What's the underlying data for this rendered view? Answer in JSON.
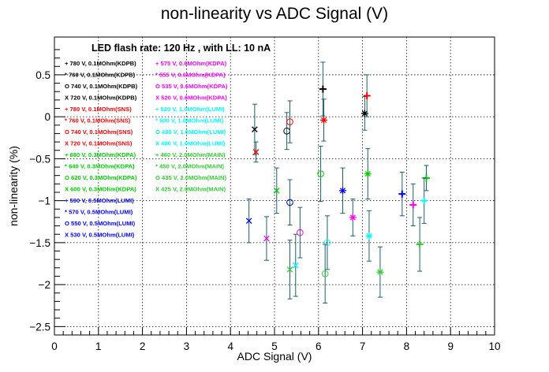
{
  "chart_data": {
    "type": "scatter",
    "title": "non-linearity vs ADC Signal (V)",
    "annotation": "LED flash rate: 120 Hz , with LL: 10 nA",
    "xlabel": "ADC Signal (V)",
    "ylabel": "non-linearity (%)",
    "xlim": [
      0,
      10
    ],
    "ylim": [
      -2.6,
      0.95
    ],
    "x_ticks": [
      0,
      1,
      2,
      3,
      4,
      5,
      6,
      7,
      8,
      9,
      10
    ],
    "x_tick_labels": [
      "0",
      "1",
      "2",
      "3",
      "4",
      "5",
      "6",
      "7",
      "8",
      "9",
      "10"
    ],
    "y_ticks": [
      -2.5,
      -2,
      -1.5,
      -1,
      -0.5,
      0,
      0.5
    ],
    "y_tick_labels": [
      "−2.5",
      "−2",
      "−1.5",
      "−1",
      "−0.5",
      "0",
      "0.5"
    ],
    "grid": true,
    "legend_position": "top-left",
    "series": [
      {
        "name": "780 V, 0.1MOhm(KDPB)",
        "color": "#000000",
        "marker": "plus",
        "x": 6.1,
        "y": 0.33,
        "err": 0.32
      },
      {
        "name": "760 V, 0.1MOhm(KDPB)",
        "color": "#000000",
        "marker": "star",
        "x": 7.05,
        "y": 0.04,
        "err": 0.2
      },
      {
        "name": "740 V, 0.1MOhm(KDPB)",
        "color": "#000000",
        "marker": "circle",
        "x": 5.28,
        "y": -0.17,
        "err": 0.22
      },
      {
        "name": "720 V, 0.1MOhm(KDPB)",
        "color": "#000000",
        "marker": "x",
        "x": 4.55,
        "y": -0.15,
        "err": 0.3
      },
      {
        "name": "780 V, 0.1MOhm(SNS)",
        "color": "#ff0000",
        "marker": "plus",
        "x": 7.1,
        "y": 0.25,
        "err": 0.25
      },
      {
        "name": "760 V, 0.1MOhm(SNS)",
        "color": "#ff0000",
        "marker": "star",
        "x": 6.12,
        "y": -0.04,
        "err": 0.25
      },
      {
        "name": "740 V, 0.1MOhm(SNS)",
        "color": "#ff0000",
        "marker": "circle",
        "x": 5.35,
        "y": -0.06,
        "err": 0.25
      },
      {
        "name": "720 V, 0.1MOhm(SNS)",
        "color": "#ff0000",
        "marker": "x",
        "x": 4.58,
        "y": -0.42,
        "err": 0.12
      },
      {
        "name": "680 V, 0.3MOhm(KDPA)",
        "color": "#00cc00",
        "marker": "plus",
        "x": 8.45,
        "y": -0.73,
        "err": 0.15
      },
      {
        "name": "640 V, 0.3MOhm(KDPA)",
        "color": "#00cc00",
        "marker": "star",
        "x": 7.12,
        "y": -0.68,
        "err": 0.3
      },
      {
        "name": "620 V, 0.3MOhm(KDPA)",
        "color": "#00cc00",
        "marker": "circle",
        "x": 6.05,
        "y": -0.68,
        "err": 0.33
      },
      {
        "name": "600 V, 0.3MOhm(KDPA)",
        "color": "#00cc00",
        "marker": "x",
        "x": 5.05,
        "y": -0.88,
        "err": 0.27
      },
      {
        "name": "590 V, 0.5MOhm(LUMI)",
        "color": "#0000ff",
        "marker": "plus",
        "x": 7.9,
        "y": -0.92,
        "err": 0.26
      },
      {
        "name": "570 V, 0.5MOhm(LUMI)",
        "color": "#0000ff",
        "marker": "star",
        "x": 6.55,
        "y": -0.88,
        "err": 0.27
      },
      {
        "name": "550 V, 0.5MOhm(LUMI)",
        "color": "#0000ff",
        "marker": "circle",
        "x": 5.35,
        "y": -1.02,
        "err": 0.27
      },
      {
        "name": "530 V, 0.5MOhm(LUMI)",
        "color": "#0000ff",
        "marker": "x",
        "x": 4.42,
        "y": -1.24,
        "err": 0.26
      },
      {
        "name": "575 V, 0.6MOhm(KDPA)",
        "color": "#ff00ff",
        "marker": "plus",
        "x": 8.15,
        "y": -1.05,
        "err": 0.25
      },
      {
        "name": "555 V, 0.6MOhm(KDPA)",
        "color": "#ff00ff",
        "marker": "star",
        "x": 6.78,
        "y": -1.2,
        "err": 0.22
      },
      {
        "name": "535 V, 0.6MOhm(KDPA)",
        "color": "#ff00ff",
        "marker": "circle",
        "x": 5.58,
        "y": -1.38,
        "err": 0.3
      },
      {
        "name": "520 V, 0.6MOhm(KDPA)",
        "color": "#ff00ff",
        "marker": "x",
        "x": 4.82,
        "y": -1.45,
        "err": 0.26
      },
      {
        "name": "520 V, 1.0MOhm(LUMI)",
        "color": "#00ffff",
        "marker": "plus",
        "x": 8.4,
        "y": -1.0,
        "err": 0.27
      },
      {
        "name": "500 V, 1.0MOhm(LUMI)",
        "color": "#00ffff",
        "marker": "star",
        "x": 7.15,
        "y": -1.42,
        "err": 0.3
      },
      {
        "name": "490 V, 1.0MOhm(LUMI)",
        "color": "#00ffff",
        "marker": "circle",
        "x": 6.2,
        "y": -1.5,
        "err": 0.32
      },
      {
        "name": "480 V, 1.0MOhm(LUMI)",
        "color": "#00ffff",
        "marker": "x",
        "x": 5.48,
        "y": -1.77,
        "err": 0.37
      },
      {
        "name": "460 V, 2.0MOhm(MAIN)",
        "color": "#33cc33",
        "marker": "plus",
        "x": 8.3,
        "y": -1.52,
        "err": 0.32
      },
      {
        "name": "450 V, 2.0MOhm(MAIN)",
        "color": "#33cc33",
        "marker": "star",
        "x": 7.4,
        "y": -1.85,
        "err": 0.3
      },
      {
        "name": "435 V, 2.0MOhm(MAIN)",
        "color": "#33cc33",
        "marker": "circle",
        "x": 6.15,
        "y": -1.87,
        "err": 0.35
      },
      {
        "name": "425 V, 2.0MOhm(MAIN)",
        "color": "#33cc33",
        "marker": "x",
        "x": 5.35,
        "y": -1.82,
        "err": 0.35
      }
    ]
  }
}
